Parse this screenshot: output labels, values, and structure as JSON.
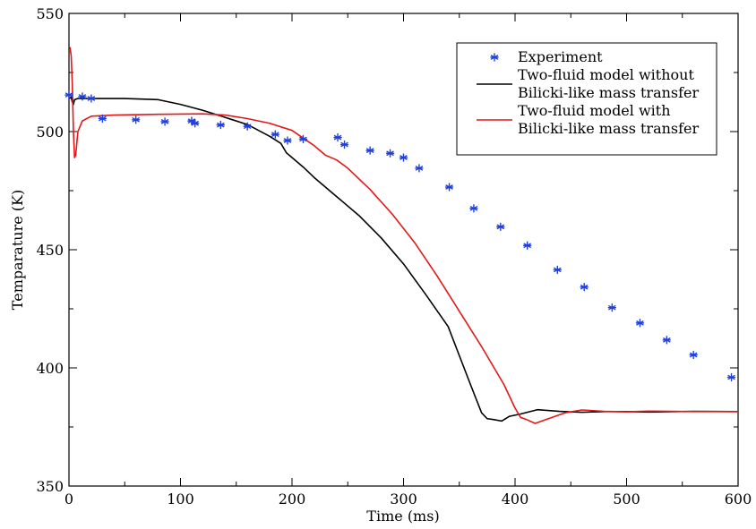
{
  "chart_data": {
    "type": "line",
    "xlabel": "Time (ms)",
    "ylabel": "Temparature (K)",
    "xlim": [
      0,
      600
    ],
    "ylim": [
      350,
      550
    ],
    "xticks": [
      0,
      100,
      200,
      300,
      400,
      500,
      600
    ],
    "yticks": [
      350,
      400,
      450,
      500,
      550
    ],
    "xtick_labels": [
      "0",
      "100",
      "200",
      "300",
      "400",
      "500",
      "600"
    ],
    "ytick_labels": [
      "350",
      "400",
      "450",
      "500",
      "550"
    ],
    "grid": false,
    "legend_position": "top-right",
    "legend": [
      {
        "series": "experiment",
        "lines": [
          "Experiment"
        ]
      },
      {
        "series": "without",
        "lines": [
          "Two-fluid model without",
          "Bilicki-like mass transfer"
        ]
      },
      {
        "series": "with",
        "lines": [
          "Two-fluid model with",
          "Bilicki-like mass transfer"
        ]
      }
    ],
    "series": [
      {
        "id": "experiment",
        "name": "Experiment",
        "kind": "scatter",
        "marker": "asterisk",
        "color": "#1f3fe0",
        "points": [
          [
            0,
            515.5
          ],
          [
            12,
            514.8
          ],
          [
            20,
            514
          ],
          [
            30,
            505.5
          ],
          [
            60,
            505
          ],
          [
            86,
            504.2
          ],
          [
            110,
            504.5
          ],
          [
            113,
            503.5
          ],
          [
            136,
            502.8
          ],
          [
            160,
            502.2
          ],
          [
            185,
            498.8
          ],
          [
            196,
            496.2
          ],
          [
            210,
            496.8
          ],
          [
            241,
            497.5
          ],
          [
            247,
            494.5
          ],
          [
            270,
            492
          ],
          [
            288,
            490.8
          ],
          [
            300,
            489
          ],
          [
            314,
            484.5
          ],
          [
            341,
            476.5
          ],
          [
            363,
            467.5
          ],
          [
            387,
            459.7
          ],
          [
            411,
            451.8
          ],
          [
            438,
            441.5
          ],
          [
            462,
            434.2
          ],
          [
            487,
            425.5
          ],
          [
            512,
            419
          ],
          [
            536,
            411.8
          ],
          [
            560,
            405.5
          ],
          [
            594,
            396
          ]
        ]
      },
      {
        "id": "without",
        "name": "Two-fluid model without Bilicki-like mass transfer",
        "kind": "line",
        "color": "#000000",
        "points": [
          [
            0,
            514
          ],
          [
            2,
            514.5
          ],
          [
            3,
            512.5
          ],
          [
            4,
            511.5
          ],
          [
            5,
            513.5
          ],
          [
            8,
            514
          ],
          [
            20,
            514
          ],
          [
            50,
            514
          ],
          [
            80,
            513.5
          ],
          [
            100,
            511.5
          ],
          [
            120,
            509
          ],
          [
            140,
            506
          ],
          [
            160,
            503
          ],
          [
            180,
            498
          ],
          [
            190,
            495
          ],
          [
            195,
            491
          ],
          [
            200,
            489
          ],
          [
            210,
            485
          ],
          [
            220,
            480.5
          ],
          [
            240,
            472.5
          ],
          [
            260,
            464.5
          ],
          [
            280,
            455
          ],
          [
            300,
            444
          ],
          [
            320,
            431
          ],
          [
            340,
            417.5
          ],
          [
            360,
            393
          ],
          [
            370,
            381
          ],
          [
            375,
            378.5
          ],
          [
            380,
            378.2
          ],
          [
            388,
            377.5
          ],
          [
            395,
            379.5
          ],
          [
            405,
            380.5
          ],
          [
            420,
            382.3
          ],
          [
            440,
            381.6
          ],
          [
            460,
            381.2
          ],
          [
            480,
            381.5
          ],
          [
            500,
            381.5
          ],
          [
            520,
            381.3
          ],
          [
            560,
            381.6
          ],
          [
            600,
            381.5
          ]
        ]
      },
      {
        "id": "with",
        "name": "Two-fluid model with Bilicki-like mass transfer",
        "kind": "line",
        "color": "#e01818",
        "points": [
          [
            0,
            533
          ],
          [
            1,
            535.5
          ],
          [
            2,
            532
          ],
          [
            3,
            520
          ],
          [
            4,
            500
          ],
          [
            5,
            489
          ],
          [
            6,
            490
          ],
          [
            8,
            500
          ],
          [
            12,
            504.5
          ],
          [
            20,
            506.5
          ],
          [
            40,
            507
          ],
          [
            80,
            507.3
          ],
          [
            120,
            507.5
          ],
          [
            140,
            507
          ],
          [
            160,
            505.5
          ],
          [
            180,
            503.5
          ],
          [
            200,
            500.5
          ],
          [
            220,
            494
          ],
          [
            230,
            490
          ],
          [
            240,
            488
          ],
          [
            250,
            484.5
          ],
          [
            270,
            475.5
          ],
          [
            290,
            465
          ],
          [
            310,
            453
          ],
          [
            330,
            439
          ],
          [
            350,
            424
          ],
          [
            370,
            409
          ],
          [
            390,
            393
          ],
          [
            400,
            383
          ],
          [
            405,
            379
          ],
          [
            410,
            378.2
          ],
          [
            418,
            376.5
          ],
          [
            430,
            378.5
          ],
          [
            445,
            381
          ],
          [
            460,
            382.2
          ],
          [
            480,
            381.6
          ],
          [
            500,
            381.4
          ],
          [
            520,
            381.7
          ],
          [
            560,
            381.5
          ],
          [
            600,
            381.5
          ]
        ]
      }
    ]
  }
}
